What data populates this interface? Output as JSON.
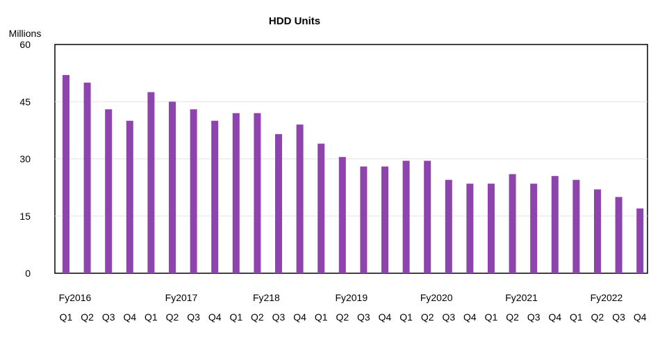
{
  "chart_data": {
    "type": "bar",
    "title": "HDD Units",
    "ylabel": "Millions",
    "ylim": [
      0,
      60
    ],
    "yticks": [
      0,
      15,
      30,
      45,
      60
    ],
    "grid": true,
    "bar_color": "#8e44ad",
    "categories": [
      "Q1",
      "Q2",
      "Q3",
      "Q4",
      "Q1",
      "Q2",
      "Q3",
      "Q4",
      "Q1",
      "Q2",
      "Q3",
      "Q4",
      "Q1",
      "Q2",
      "Q3",
      "Q4",
      "Q1",
      "Q2",
      "Q3",
      "Q4",
      "Q1",
      "Q2",
      "Q3",
      "Q4",
      "Q1",
      "Q2",
      "Q3",
      "Q4"
    ],
    "fiscal_year_labels": [
      {
        "label": "Fy2016",
        "index": 0
      },
      {
        "label": "Fy2017",
        "index": 5
      },
      {
        "label": "Fy218",
        "index": 9
      },
      {
        "label": "Fy2019",
        "index": 13
      },
      {
        "label": "Fy2020",
        "index": 17
      },
      {
        "label": "Fy2021",
        "index": 21
      },
      {
        "label": "Fy2022",
        "index": 25
      }
    ],
    "values": [
      52,
      50,
      43,
      40,
      47.5,
      45,
      43,
      40,
      42,
      42,
      36.5,
      39,
      34,
      30.5,
      28,
      28,
      29.5,
      29.5,
      24.5,
      23.5,
      23.5,
      26,
      23.5,
      25.5,
      24.5,
      22,
      20,
      17
    ]
  }
}
